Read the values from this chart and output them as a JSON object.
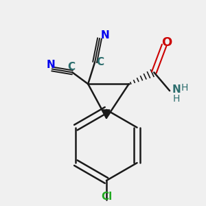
{
  "bg_color": "#f0f0f0",
  "bond_color": "#1a1a1a",
  "bond_width": 1.8,
  "figsize": [
    3.0,
    3.0
  ],
  "dpi": 100,
  "colors": {
    "C": "#2d6e6e",
    "N": "#0000ee",
    "O": "#cc0000",
    "Cl": "#22aa22",
    "H": "#2d6e6e",
    "bond": "#1a1a1a"
  }
}
